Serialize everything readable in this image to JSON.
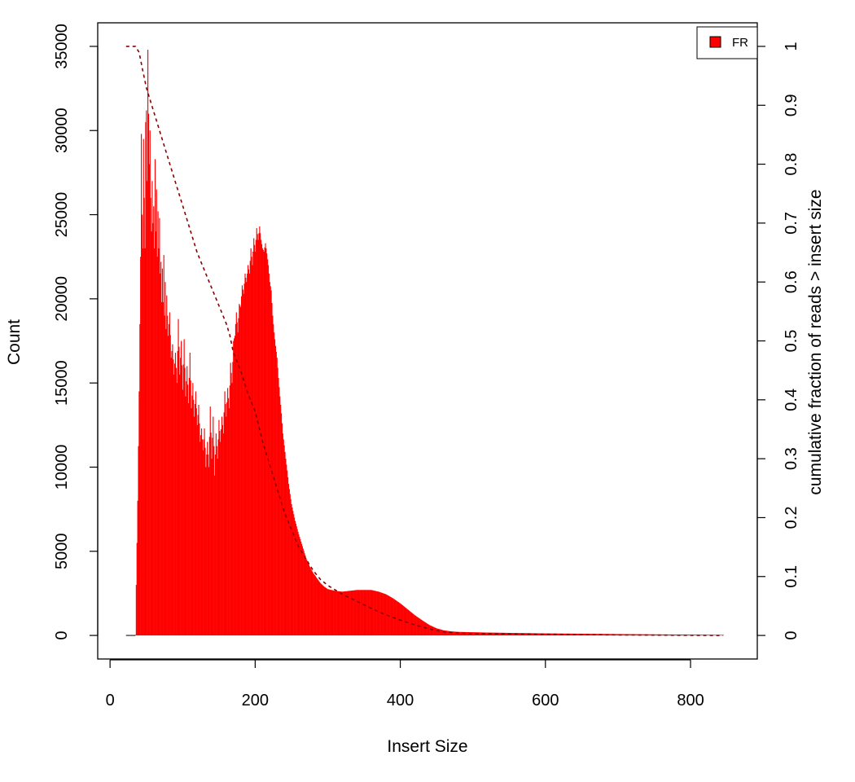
{
  "chart_data": {
    "type": "histogram",
    "xlabel": "Insert Size",
    "ylabel": "Count",
    "y2label": "cumulative fraction of reads > insert size",
    "xlim": [
      -17,
      892
    ],
    "ylim": [
      -1400,
      36400
    ],
    "y2lim": [
      -0.04,
      1.04
    ],
    "xticks": [
      0,
      200,
      400,
      600,
      800
    ],
    "yticks": [
      0,
      5000,
      10000,
      15000,
      20000,
      25000,
      30000,
      35000
    ],
    "y2ticks": [
      0,
      0.1,
      0.2,
      0.3,
      0.4,
      0.5,
      0.6,
      0.7,
      0.8,
      0.9,
      1
    ],
    "legend": {
      "position": "top-right",
      "entries": [
        {
          "label": "FR",
          "color": "#ff0000"
        }
      ]
    },
    "series": [
      {
        "name": "FR",
        "color": "#ff0000",
        "kind": "bars",
        "points": [
          [
            35,
            0
          ],
          [
            36,
            3000
          ],
          [
            38,
            8000
          ],
          [
            40,
            14500
          ],
          [
            42,
            22500
          ],
          [
            43,
            29800
          ],
          [
            44,
            25000
          ],
          [
            45,
            23000
          ],
          [
            46,
            29500
          ],
          [
            47,
            26000
          ],
          [
            48,
            23000
          ],
          [
            49,
            30500
          ],
          [
            50,
            31200
          ],
          [
            51,
            27000
          ],
          [
            52,
            34800
          ],
          [
            53,
            31000
          ],
          [
            54,
            28000
          ],
          [
            55,
            30000
          ],
          [
            56,
            26000
          ],
          [
            57,
            24000
          ],
          [
            58,
            27000
          ],
          [
            59,
            24500
          ],
          [
            60,
            25500
          ],
          [
            61,
            23000
          ],
          [
            62,
            28300
          ],
          [
            63,
            24000
          ],
          [
            64,
            26500
          ],
          [
            65,
            22500
          ],
          [
            66,
            25200
          ],
          [
            67,
            23000
          ],
          [
            68,
            24800
          ],
          [
            69,
            21500
          ],
          [
            70,
            22200
          ],
          [
            71,
            19800
          ],
          [
            72,
            21800
          ],
          [
            73,
            19800
          ],
          [
            74,
            22600
          ],
          [
            75,
            19000
          ],
          [
            76,
            21000
          ],
          [
            77,
            18200
          ],
          [
            78,
            20200
          ],
          [
            80,
            17800
          ],
          [
            82,
            19200
          ],
          [
            84,
            16500
          ],
          [
            86,
            17300
          ],
          [
            88,
            15500
          ],
          [
            90,
            16800
          ],
          [
            92,
            15000
          ],
          [
            94,
            18800
          ],
          [
            96,
            15500
          ],
          [
            98,
            17500
          ],
          [
            100,
            14600
          ],
          [
            102,
            17600
          ],
          [
            104,
            14200
          ],
          [
            106,
            16000
          ],
          [
            108,
            13800
          ],
          [
            110,
            16800
          ],
          [
            112,
            13500
          ],
          [
            114,
            15000
          ],
          [
            116,
            13000
          ],
          [
            118,
            14500
          ],
          [
            120,
            12500
          ],
          [
            122,
            13700
          ],
          [
            124,
            11500
          ],
          [
            126,
            12300
          ],
          [
            128,
            11000
          ],
          [
            130,
            12300
          ],
          [
            132,
            10000
          ],
          [
            134,
            11500
          ],
          [
            136,
            10000
          ],
          [
            138,
            13600
          ],
          [
            140,
            10500
          ],
          [
            142,
            13000
          ],
          [
            144,
            9500
          ],
          [
            146,
            12000
          ],
          [
            148,
            10500
          ],
          [
            150,
            12800
          ],
          [
            152,
            11500
          ],
          [
            154,
            13000
          ],
          [
            156,
            12000
          ],
          [
            158,
            14500
          ],
          [
            160,
            13000
          ],
          [
            162,
            14700
          ],
          [
            164,
            13500
          ],
          [
            166,
            16200
          ],
          [
            168,
            15000
          ],
          [
            170,
            17500
          ],
          [
            172,
            17800
          ],
          [
            174,
            19200
          ],
          [
            176,
            18000
          ],
          [
            178,
            19700
          ],
          [
            180,
            19500
          ],
          [
            182,
            20800
          ],
          [
            184,
            20300
          ],
          [
            186,
            21500
          ],
          [
            188,
            21000
          ],
          [
            190,
            22000
          ],
          [
            192,
            21500
          ],
          [
            194,
            23000
          ],
          [
            196,
            22000
          ],
          [
            198,
            23600
          ],
          [
            200,
            22800
          ],
          [
            202,
            24200
          ],
          [
            204,
            23500
          ],
          [
            206,
            24300
          ],
          [
            208,
            23500
          ],
          [
            210,
            23000
          ],
          [
            212,
            22800
          ],
          [
            214,
            23300
          ],
          [
            216,
            22700
          ],
          [
            218,
            22000
          ],
          [
            220,
            21000
          ],
          [
            222,
            20500
          ],
          [
            224,
            19000
          ],
          [
            226,
            18000
          ],
          [
            228,
            17200
          ],
          [
            230,
            16500
          ],
          [
            232,
            15300
          ],
          [
            234,
            14200
          ],
          [
            236,
            13200
          ],
          [
            238,
            12000
          ],
          [
            240,
            11300
          ],
          [
            242,
            10500
          ],
          [
            244,
            9800
          ],
          [
            246,
            9000
          ],
          [
            248,
            8400
          ],
          [
            250,
            7800
          ],
          [
            255,
            6800
          ],
          [
            260,
            6000
          ],
          [
            265,
            5300
          ],
          [
            270,
            4600
          ],
          [
            275,
            4100
          ],
          [
            280,
            3700
          ],
          [
            285,
            3400
          ],
          [
            290,
            3100
          ],
          [
            295,
            2900
          ],
          [
            300,
            2750
          ],
          [
            310,
            2650
          ],
          [
            320,
            2600
          ],
          [
            330,
            2650
          ],
          [
            340,
            2700
          ],
          [
            350,
            2700
          ],
          [
            360,
            2700
          ],
          [
            370,
            2600
          ],
          [
            380,
            2450
          ],
          [
            390,
            2200
          ],
          [
            400,
            1900
          ],
          [
            410,
            1550
          ],
          [
            420,
            1200
          ],
          [
            430,
            900
          ],
          [
            440,
            620
          ],
          [
            450,
            420
          ],
          [
            460,
            300
          ],
          [
            470,
            240
          ],
          [
            480,
            210
          ],
          [
            500,
            190
          ],
          [
            520,
            170
          ],
          [
            550,
            150
          ],
          [
            600,
            120
          ],
          [
            650,
            100
          ],
          [
            700,
            80
          ],
          [
            750,
            60
          ],
          [
            800,
            45
          ],
          [
            845,
            30
          ]
        ]
      },
      {
        "name": "cumulative",
        "color": "#8b0000",
        "kind": "line",
        "axis": "right",
        "points": [
          [
            22,
            1
          ],
          [
            35,
            1
          ],
          [
            40,
            0.99
          ],
          [
            45,
            0.96
          ],
          [
            50,
            0.93
          ],
          [
            60,
            0.89
          ],
          [
            70,
            0.85
          ],
          [
            80,
            0.81
          ],
          [
            90,
            0.77
          ],
          [
            100,
            0.73
          ],
          [
            110,
            0.69
          ],
          [
            120,
            0.65
          ],
          [
            130,
            0.62
          ],
          [
            140,
            0.59
          ],
          [
            150,
            0.56
          ],
          [
            160,
            0.53
          ],
          [
            165,
            0.51
          ],
          [
            170,
            0.48
          ],
          [
            180,
            0.45
          ],
          [
            190,
            0.41
          ],
          [
            200,
            0.38
          ],
          [
            210,
            0.33
          ],
          [
            220,
            0.29
          ],
          [
            230,
            0.25
          ],
          [
            240,
            0.21
          ],
          [
            250,
            0.18
          ],
          [
            260,
            0.15
          ],
          [
            270,
            0.13
          ],
          [
            280,
            0.11
          ],
          [
            290,
            0.095
          ],
          [
            300,
            0.085
          ],
          [
            320,
            0.07
          ],
          [
            340,
            0.058
          ],
          [
            360,
            0.046
          ],
          [
            380,
            0.035
          ],
          [
            400,
            0.026
          ],
          [
            420,
            0.018
          ],
          [
            440,
            0.011
          ],
          [
            460,
            0.006
          ],
          [
            480,
            0.004
          ],
          [
            500,
            0.003
          ],
          [
            600,
            0.002
          ],
          [
            700,
            0.001
          ],
          [
            845,
            0
          ]
        ]
      }
    ]
  }
}
